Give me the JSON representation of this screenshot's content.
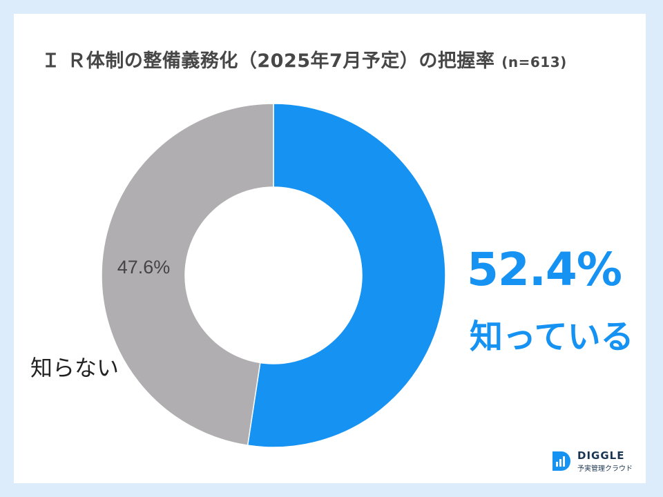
{
  "title": "Ｉ Ｒ体制の整備義務化（2025年7月予定）の把握率",
  "sample": "(n=613)",
  "chart_data": {
    "type": "pie",
    "donut": true,
    "categories": [
      "知っている",
      "知らない"
    ],
    "values": [
      52.4,
      47.6
    ],
    "labels": [
      "52.4%",
      "47.6%"
    ],
    "colors": [
      "#1592f2",
      "#b0aeb0"
    ]
  },
  "logo": {
    "name": "DIGGLE",
    "tagline": "予実管理クラウド"
  }
}
